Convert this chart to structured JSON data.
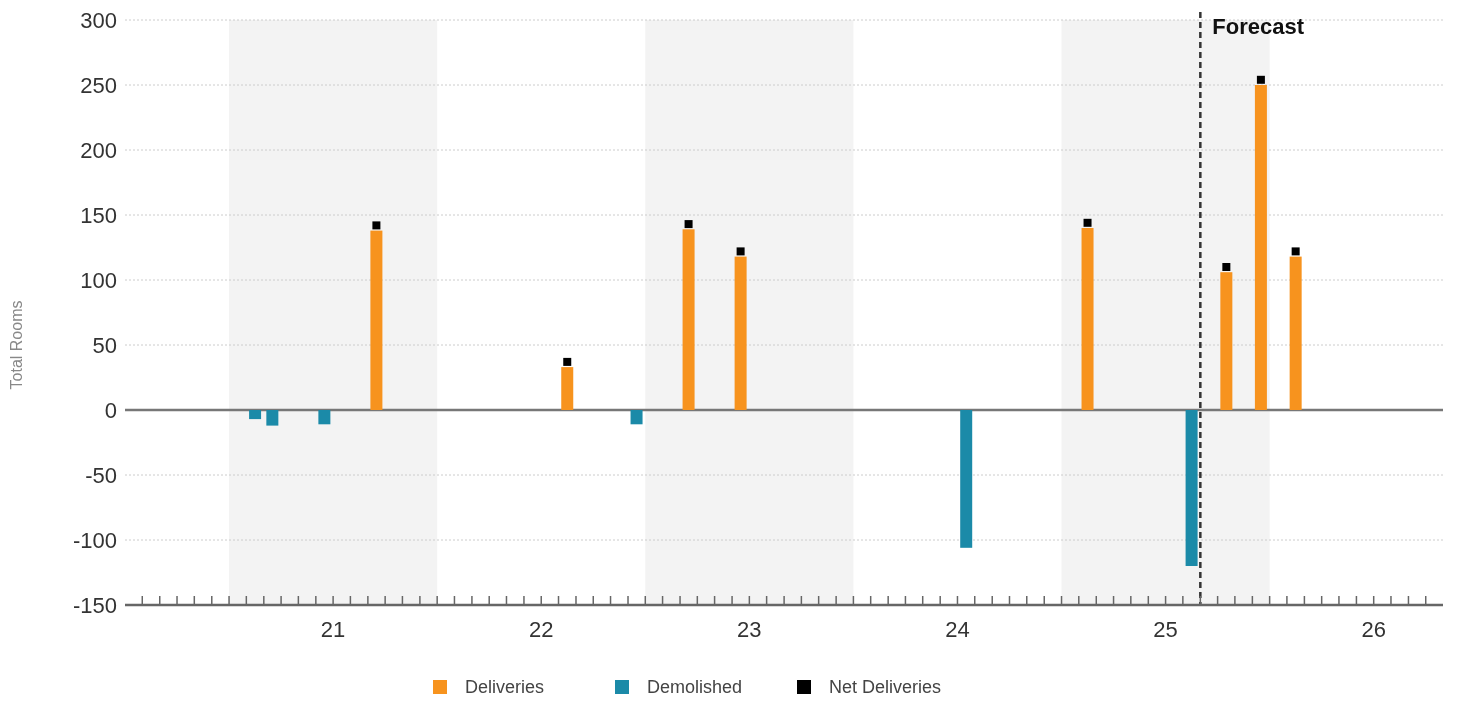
{
  "chart_data": {
    "type": "bar",
    "ylabel": "Total Rooms",
    "xlim": [
      20,
      26.333
    ],
    "ylim": [
      -150,
      300
    ],
    "yticks": [
      -150,
      -100,
      -50,
      0,
      50,
      100,
      150,
      200,
      250,
      300
    ],
    "xticks": [
      {
        "value": 20.083,
        "label": null
      },
      {
        "value": 20.167,
        "label": null
      },
      {
        "value": 20.25,
        "label": null
      },
      {
        "value": 20.333,
        "label": null
      },
      {
        "value": 20.417,
        "label": null
      },
      {
        "value": 20.5,
        "label": null
      },
      {
        "value": 20.583,
        "label": null
      },
      {
        "value": 20.667,
        "label": null
      },
      {
        "value": 20.75,
        "label": null
      },
      {
        "value": 20.833,
        "label": null
      },
      {
        "value": 20.917,
        "label": null
      },
      {
        "value": 21,
        "label": "21"
      },
      {
        "value": 21.083,
        "label": null
      },
      {
        "value": 21.167,
        "label": null
      },
      {
        "value": 21.25,
        "label": null
      },
      {
        "value": 21.333,
        "label": null
      },
      {
        "value": 21.417,
        "label": null
      },
      {
        "value": 21.5,
        "label": null
      },
      {
        "value": 21.583,
        "label": null
      },
      {
        "value": 21.667,
        "label": null
      },
      {
        "value": 21.75,
        "label": null
      },
      {
        "value": 21.833,
        "label": null
      },
      {
        "value": 21.917,
        "label": null
      },
      {
        "value": 22,
        "label": "22"
      },
      {
        "value": 22.083,
        "label": null
      },
      {
        "value": 22.167,
        "label": null
      },
      {
        "value": 22.25,
        "label": null
      },
      {
        "value": 22.333,
        "label": null
      },
      {
        "value": 22.417,
        "label": null
      },
      {
        "value": 22.5,
        "label": null
      },
      {
        "value": 22.583,
        "label": null
      },
      {
        "value": 22.667,
        "label": null
      },
      {
        "value": 22.75,
        "label": null
      },
      {
        "value": 22.833,
        "label": null
      },
      {
        "value": 22.917,
        "label": null
      },
      {
        "value": 23,
        "label": "23"
      },
      {
        "value": 23.083,
        "label": null
      },
      {
        "value": 23.167,
        "label": null
      },
      {
        "value": 23.25,
        "label": null
      },
      {
        "value": 23.333,
        "label": null
      },
      {
        "value": 23.417,
        "label": null
      },
      {
        "value": 23.5,
        "label": null
      },
      {
        "value": 23.583,
        "label": null
      },
      {
        "value": 23.667,
        "label": null
      },
      {
        "value": 23.75,
        "label": null
      },
      {
        "value": 23.833,
        "label": null
      },
      {
        "value": 23.917,
        "label": null
      },
      {
        "value": 24,
        "label": "24"
      },
      {
        "value": 24.083,
        "label": null
      },
      {
        "value": 24.167,
        "label": null
      },
      {
        "value": 24.25,
        "label": null
      },
      {
        "value": 24.333,
        "label": null
      },
      {
        "value": 24.417,
        "label": null
      },
      {
        "value": 24.5,
        "label": null
      },
      {
        "value": 24.583,
        "label": null
      },
      {
        "value": 24.667,
        "label": null
      },
      {
        "value": 24.75,
        "label": null
      },
      {
        "value": 24.833,
        "label": null
      },
      {
        "value": 24.917,
        "label": null
      },
      {
        "value": 25,
        "label": "25"
      },
      {
        "value": 25.083,
        "label": null
      },
      {
        "value": 25.167,
        "label": null
      },
      {
        "value": 25.25,
        "label": null
      },
      {
        "value": 25.333,
        "label": null
      },
      {
        "value": 25.417,
        "label": null
      },
      {
        "value": 25.5,
        "label": null
      },
      {
        "value": 25.583,
        "label": null
      },
      {
        "value": 25.667,
        "label": null
      },
      {
        "value": 25.75,
        "label": null
      },
      {
        "value": 25.833,
        "label": null
      },
      {
        "value": 25.917,
        "label": null
      },
      {
        "value": 26,
        "label": "26"
      },
      {
        "value": 26.083,
        "label": null
      },
      {
        "value": 26.167,
        "label": null
      },
      {
        "value": 26.25,
        "label": null
      }
    ],
    "grid": "y",
    "legend": "bottom",
    "bands": [
      {
        "axis": "x",
        "from": 20.5,
        "to": 21.5,
        "color": "#f3f3f3"
      },
      {
        "axis": "x",
        "from": 22.5,
        "to": 23.5,
        "color": "#f3f3f3"
      },
      {
        "axis": "x",
        "from": 24.5,
        "to": 25.5,
        "color": "#f3f3f3"
      }
    ],
    "ref_lines": [
      {
        "axis": "x",
        "value": 25.167,
        "label": "Forecast",
        "color": "#333333",
        "line_style": "dashed"
      }
    ],
    "series": [
      {
        "name": "Deliveries",
        "color": "#f7931e",
        "x": [
          21.208,
          22.125,
          22.708,
          22.958,
          24.625,
          25.292,
          25.458,
          25.625
        ],
        "values": [
          138,
          33,
          139,
          118,
          140,
          106,
          250,
          118
        ]
      },
      {
        "name": "Demolished",
        "color": "#1b8aa8",
        "x": [
          20.625,
          20.708,
          20.958,
          22.458,
          24.042,
          25.125
        ],
        "values": [
          -7,
          -12,
          -11,
          -11,
          -106,
          -120
        ]
      },
      {
        "name": "Net Deliveries",
        "type": "scatter",
        "marker": "square",
        "color": "#000000",
        "x": [
          21.208,
          22.125,
          22.708,
          22.958,
          24.625,
          25.292,
          25.458,
          25.625
        ],
        "values": [
          142,
          37,
          143,
          122,
          144,
          110,
          254,
          122
        ]
      }
    ]
  }
}
